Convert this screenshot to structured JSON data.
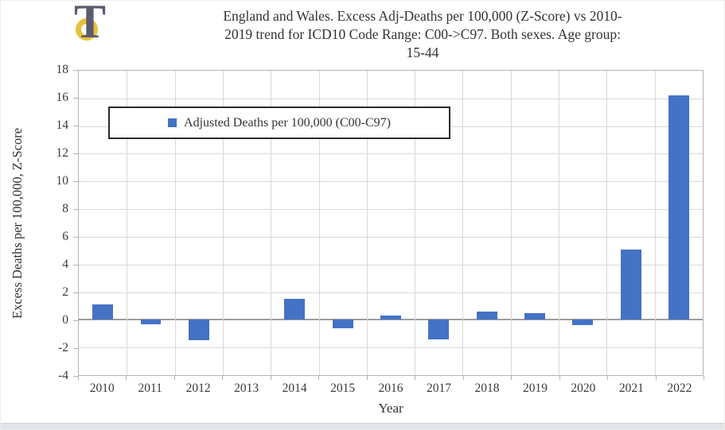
{
  "header": {
    "title_display": "England and Wales. Excess Adj-Deaths per 100,000 (Z-Score) vs 2010-\n2019 trend for ICD10 Code Range: C00->C97. Both sexes. Age group:\n15-44",
    "logo_letter": "T"
  },
  "chart_data": {
    "type": "bar",
    "title": "England and Wales. Excess Adj-Deaths per 100,000 (Z-Score) vs 2010-2019 trend for ICD10 Code Range: C00->C97. Both sexes. Age group: 15-44",
    "categories": [
      "2010",
      "2011",
      "2012",
      "2013",
      "2014",
      "2015",
      "2016",
      "2017",
      "2018",
      "2019",
      "2020",
      "2021",
      "2022"
    ],
    "series": [
      {
        "name": "Adjusted Deaths per 100,000 (C00-C97)",
        "values": [
          1.1,
          -0.3,
          -1.5,
          0,
          1.5,
          -0.6,
          0.3,
          -1.4,
          0.6,
          0.5,
          -0.4,
          5.1,
          16.2
        ],
        "color": "#4472C4"
      }
    ],
    "xlabel": "Year",
    "ylabel": "Excess Deaths per 100,000, Z-Score",
    "ylim": [
      -4,
      18
    ],
    "ytick_step": 2,
    "grid": true,
    "legend": {
      "label": "Adjusted Deaths per 100,000 (C00-C97)",
      "position": "top-left"
    }
  },
  "colors": {
    "bar": "#4472C4",
    "gridline": "#d9d9d9",
    "axis_line": "#b3b3b3",
    "zero_line": "#9e9e9e",
    "text": "#3a3a3a",
    "legend_border": "#2b2b2b",
    "logo_ring": "#E6C23C",
    "logo_letter_color": "#5B5C6E",
    "bottom_strip": "#e1e4e8"
  }
}
